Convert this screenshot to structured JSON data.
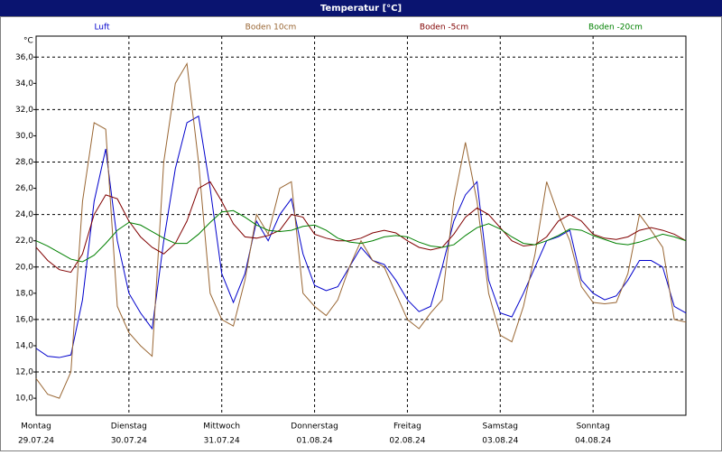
{
  "chart_data": {
    "type": "line",
    "title": "Temperatur [°C]",
    "y_unit": "°C",
    "x": [
      0,
      3,
      6,
      9,
      12,
      15,
      18,
      21,
      24,
      27,
      30,
      33,
      36,
      39,
      42,
      45,
      48,
      51,
      54,
      57,
      60,
      63,
      66,
      69,
      72,
      75,
      78,
      81,
      84,
      87,
      90,
      93,
      96,
      99,
      102,
      105,
      108,
      111,
      114,
      117,
      120,
      123,
      126,
      129,
      132,
      135,
      138,
      141,
      144,
      147,
      150,
      153,
      156,
      159,
      162,
      165,
      168
    ],
    "series": [
      {
        "name": "Luft",
        "color": "#0000cc",
        "values": [
          13.8,
          13.2,
          13.1,
          13.3,
          17.5,
          25.0,
          29.0,
          22.0,
          18.0,
          16.5,
          15.3,
          22.0,
          27.5,
          31.0,
          31.5,
          26.0,
          19.5,
          17.3,
          19.5,
          23.5,
          22.0,
          24.0,
          25.2,
          21.0,
          18.6,
          18.2,
          18.5,
          20.0,
          21.5,
          20.5,
          20.2,
          19.0,
          17.5,
          16.6,
          17.0,
          20.0,
          23.5,
          25.5,
          26.5,
          19.0,
          16.5,
          16.2,
          18.0,
          20.0,
          22.0,
          22.3,
          22.8,
          19.0,
          18.0,
          17.5,
          17.8,
          19.0,
          20.5,
          20.5,
          20.0,
          17.0,
          16.5
        ]
      },
      {
        "name": "Boden 10cm",
        "color": "#996633",
        "values": [
          11.5,
          10.3,
          10.0,
          12.0,
          25.0,
          31.0,
          30.5,
          17.0,
          15.0,
          14.0,
          13.2,
          28.0,
          34.0,
          35.5,
          28.0,
          18.0,
          16.0,
          15.5,
          19.0,
          24.0,
          22.5,
          26.0,
          26.5,
          18.0,
          17.0,
          16.3,
          17.5,
          20.0,
          22.0,
          20.5,
          20.0,
          18.0,
          16.0,
          15.3,
          16.5,
          17.5,
          25.0,
          29.5,
          25.0,
          18.0,
          14.8,
          14.3,
          17.0,
          21.0,
          26.5,
          24.0,
          22.0,
          18.5,
          17.3,
          17.2,
          17.3,
          19.5,
          24.0,
          22.8,
          21.5,
          16.0,
          15.8
        ]
      },
      {
        "name": "Boden -5cm",
        "color": "#800000",
        "values": [
          21.5,
          20.5,
          19.8,
          19.6,
          21.0,
          24.0,
          25.5,
          25.2,
          23.5,
          22.3,
          21.5,
          21.0,
          21.8,
          23.5,
          26.0,
          26.5,
          25.0,
          23.3,
          22.3,
          22.2,
          22.4,
          22.8,
          24.0,
          23.8,
          22.5,
          22.2,
          22.0,
          22.0,
          22.2,
          22.6,
          22.8,
          22.6,
          22.0,
          21.5,
          21.3,
          21.5,
          22.5,
          23.8,
          24.5,
          24.0,
          23.0,
          22.0,
          21.6,
          21.7,
          22.3,
          23.5,
          24.0,
          23.5,
          22.5,
          22.2,
          22.1,
          22.3,
          22.8,
          23.0,
          22.8,
          22.5,
          22.0
        ]
      },
      {
        "name": "Boden -20cm",
        "color": "#008000",
        "values": [
          22.0,
          21.6,
          21.1,
          20.6,
          20.4,
          20.9,
          21.8,
          22.8,
          23.4,
          23.2,
          22.7,
          22.2,
          21.8,
          21.8,
          22.5,
          23.4,
          24.2,
          24.3,
          23.8,
          23.2,
          22.8,
          22.7,
          22.8,
          23.1,
          23.2,
          22.8,
          22.2,
          21.9,
          21.8,
          22.0,
          22.3,
          22.4,
          22.3,
          21.9,
          21.6,
          21.5,
          21.7,
          22.4,
          23.0,
          23.3,
          22.9,
          22.3,
          21.8,
          21.7,
          22.0,
          22.4,
          22.9,
          22.8,
          22.4,
          22.1,
          21.8,
          21.7,
          21.9,
          22.2,
          22.5,
          22.3,
          22.0
        ]
      }
    ],
    "xlim": [
      0,
      168
    ],
    "xticks": [
      {
        "value": 0,
        "label": "Montag",
        "date": "29.07.24"
      },
      {
        "value": 24,
        "label": "Dienstag",
        "date": "30.07.24"
      },
      {
        "value": 48,
        "label": "Mittwoch",
        "date": "31.07.24"
      },
      {
        "value": 72,
        "label": "Donnerstag",
        "date": "01.08.24"
      },
      {
        "value": 96,
        "label": "Freitag",
        "date": "02.08.24"
      },
      {
        "value": 120,
        "label": "Samstag",
        "date": "03.08.24"
      },
      {
        "value": 144,
        "label": "Sonntag",
        "date": "04.08.24"
      }
    ],
    "ylim": [
      8.7,
      37.6
    ],
    "yticks": [
      {
        "value": 10,
        "label": "10,0"
      },
      {
        "value": 12,
        "label": "12,0"
      },
      {
        "value": 14,
        "label": "14,0"
      },
      {
        "value": 16,
        "label": "16,0"
      },
      {
        "value": 18,
        "label": "18,0"
      },
      {
        "value": 20,
        "label": "20,0"
      },
      {
        "value": 22,
        "label": "22,0"
      },
      {
        "value": 24,
        "label": "24,0"
      },
      {
        "value": 26,
        "label": "26,0"
      },
      {
        "value": 28,
        "label": "28,0"
      },
      {
        "value": 30,
        "label": "30,0"
      },
      {
        "value": 32,
        "label": "32,0"
      },
      {
        "value": 34,
        "label": "34,0"
      },
      {
        "value": 36,
        "label": "36,0"
      }
    ],
    "grid": true
  }
}
